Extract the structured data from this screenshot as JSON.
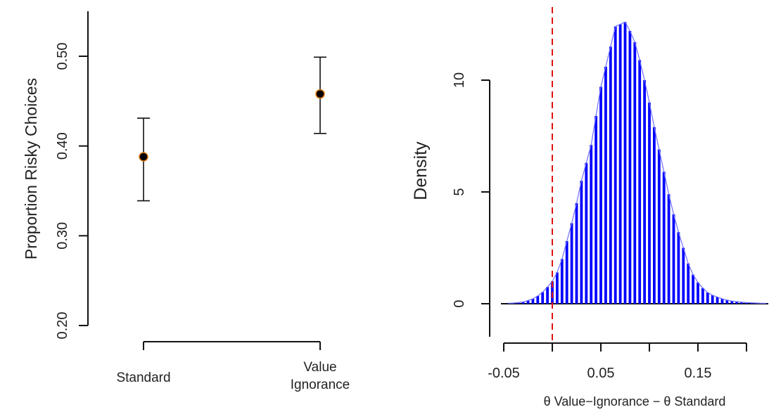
{
  "chart_data": [
    {
      "type": "scatter",
      "ylabel": "Proportion Risky Choices",
      "ylim": [
        0.2,
        0.54
      ],
      "yticks": [
        "0.20",
        "0.30",
        "0.40",
        "0.50"
      ],
      "categories": [
        "Standard",
        "Value Ignorance"
      ],
      "category_lines": [
        [
          "Standard"
        ],
        [
          "Value",
          "Ignorance"
        ]
      ],
      "points": [
        {
          "category": "Standard",
          "value": 0.388,
          "lower": 0.339,
          "upper": 0.431
        },
        {
          "category": "Value Ignorance",
          "value": 0.458,
          "lower": 0.414,
          "upper": 0.499
        }
      ],
      "point_color": "#000000",
      "point_edge_color": "#e07a10",
      "error_bars": true
    },
    {
      "type": "bar",
      "ylabel": "Density",
      "xlabel": "θ Value−Ignorance − θ Standard",
      "xlim": [
        -0.055,
        0.23
      ],
      "ylim": [
        -1.5,
        13.2
      ],
      "xticks": [
        "-0.05",
        "0.05",
        "0.15"
      ],
      "yticks": [
        "0",
        "5",
        "10"
      ],
      "bar_color": "#0000ff",
      "line_color": "#6e6eff",
      "reference_line": {
        "x": 0.0,
        "color": "#e01010",
        "style": "dashed"
      },
      "x": [
        -0.045,
        -0.04,
        -0.035,
        -0.03,
        -0.025,
        -0.02,
        -0.015,
        -0.01,
        -0.005,
        0.0,
        0.005,
        0.01,
        0.015,
        0.02,
        0.025,
        0.03,
        0.035,
        0.04,
        0.045,
        0.05,
        0.055,
        0.06,
        0.065,
        0.07,
        0.075,
        0.08,
        0.085,
        0.09,
        0.095,
        0.1,
        0.105,
        0.11,
        0.115,
        0.12,
        0.125,
        0.13,
        0.135,
        0.14,
        0.145,
        0.15,
        0.155,
        0.16,
        0.165,
        0.17,
        0.175,
        0.18,
        0.185,
        0.19,
        0.195,
        0.2,
        0.205,
        0.21,
        0.215,
        0.22
      ],
      "values": [
        0.02,
        0.03,
        0.05,
        0.08,
        0.14,
        0.22,
        0.35,
        0.52,
        0.75,
        1.0,
        1.4,
        2.0,
        2.8,
        3.6,
        4.5,
        5.5,
        6.3,
        7.1,
        8.4,
        9.7,
        10.6,
        11.5,
        12.4,
        12.5,
        12.6,
        12.2,
        11.7,
        10.9,
        10.0,
        9.0,
        7.9,
        6.9,
        5.9,
        4.9,
        4.0,
        3.2,
        2.5,
        1.8,
        1.3,
        0.95,
        0.7,
        0.5,
        0.38,
        0.3,
        0.22,
        0.16,
        0.12,
        0.09,
        0.07,
        0.05,
        0.04,
        0.03,
        0.02,
        0.02
      ]
    }
  ]
}
